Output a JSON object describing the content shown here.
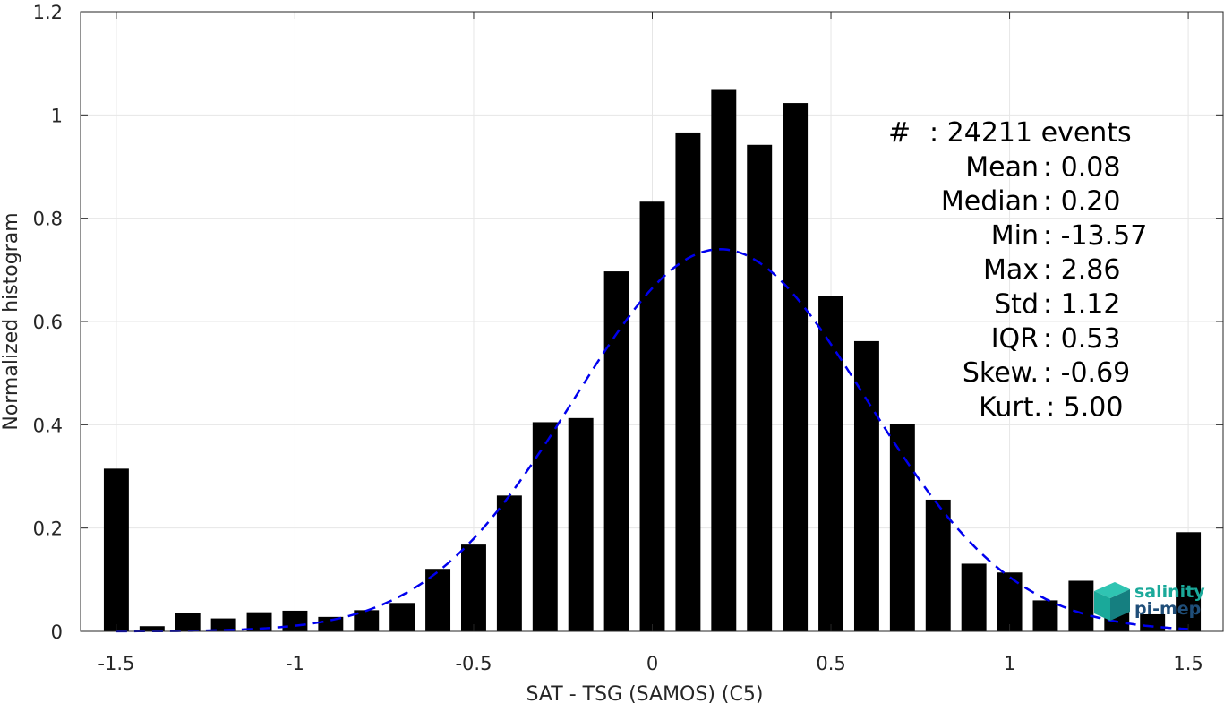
{
  "chart_data": {
    "type": "bar",
    "xlabel": "SAT - TSG (SAMOS) (C5)",
    "ylabel": "Normalized histogram",
    "xlim": [
      -1.6,
      1.6
    ],
    "ylim": [
      0,
      1.2
    ],
    "xticks": [
      -1.5,
      -1,
      -0.5,
      0,
      0.5,
      1,
      1.5
    ],
    "xtick_labels": [
      "-1.5",
      "-1",
      "-0.5",
      "0",
      "0.5",
      "1",
      "1.5"
    ],
    "yticks": [
      0,
      0.2,
      0.4,
      0.6,
      0.8,
      1,
      1.2
    ],
    "ytick_labels": [
      "0",
      "0.2",
      "0.4",
      "0.6",
      "0.8",
      "1",
      "1.2"
    ],
    "grid": true,
    "bar_width": 0.07,
    "colors": {
      "bars": "#000000",
      "fit": "#0000ee",
      "logo_teal": "#1aa99a",
      "logo_navy": "#1f4e79"
    },
    "x": [
      -1.5,
      -1.4,
      -1.3,
      -1.2,
      -1.1,
      -1.0,
      -0.9,
      -0.8,
      -0.7,
      -0.6,
      -0.5,
      -0.4,
      -0.3,
      -0.2,
      -0.1,
      0.0,
      0.1,
      0.2,
      0.3,
      0.4,
      0.5,
      0.6,
      0.7,
      0.8,
      0.9,
      1.0,
      1.1,
      1.2,
      1.3,
      1.4,
      1.5
    ],
    "values": [
      0.315,
      0.01,
      0.035,
      0.025,
      0.037,
      0.04,
      0.028,
      0.041,
      0.055,
      0.121,
      0.168,
      0.263,
      0.405,
      0.413,
      0.697,
      0.832,
      0.966,
      1.05,
      0.942,
      1.023,
      0.649,
      0.562,
      0.401,
      0.255,
      0.131,
      0.114,
      0.06,
      0.098,
      0.052,
      0.033,
      0.192
    ],
    "fit": {
      "type": "gaussian",
      "style": "dashed",
      "mu": 0.19,
      "sigma": 0.41,
      "peak": 0.74
    },
    "annotations": [
      {
        "label": "#",
        "value": ": 24211 events"
      },
      {
        "label": "Mean",
        "value": ": 0.08"
      },
      {
        "label": "Median",
        "value": ": 0.20"
      },
      {
        "label": "Min",
        "value": ": -13.57"
      },
      {
        "label": "Max",
        "value": ": 2.86"
      },
      {
        "label": "Std",
        "value": ": 1.12"
      },
      {
        "label": "IQR",
        "value": ": 0.53"
      },
      {
        "label": "Skew.",
        "value": ": -0.69"
      },
      {
        "label": "Kurt.",
        "value": ": 5.00"
      }
    ]
  },
  "logo": {
    "line1": "salinity",
    "line2": "pi-mep"
  }
}
